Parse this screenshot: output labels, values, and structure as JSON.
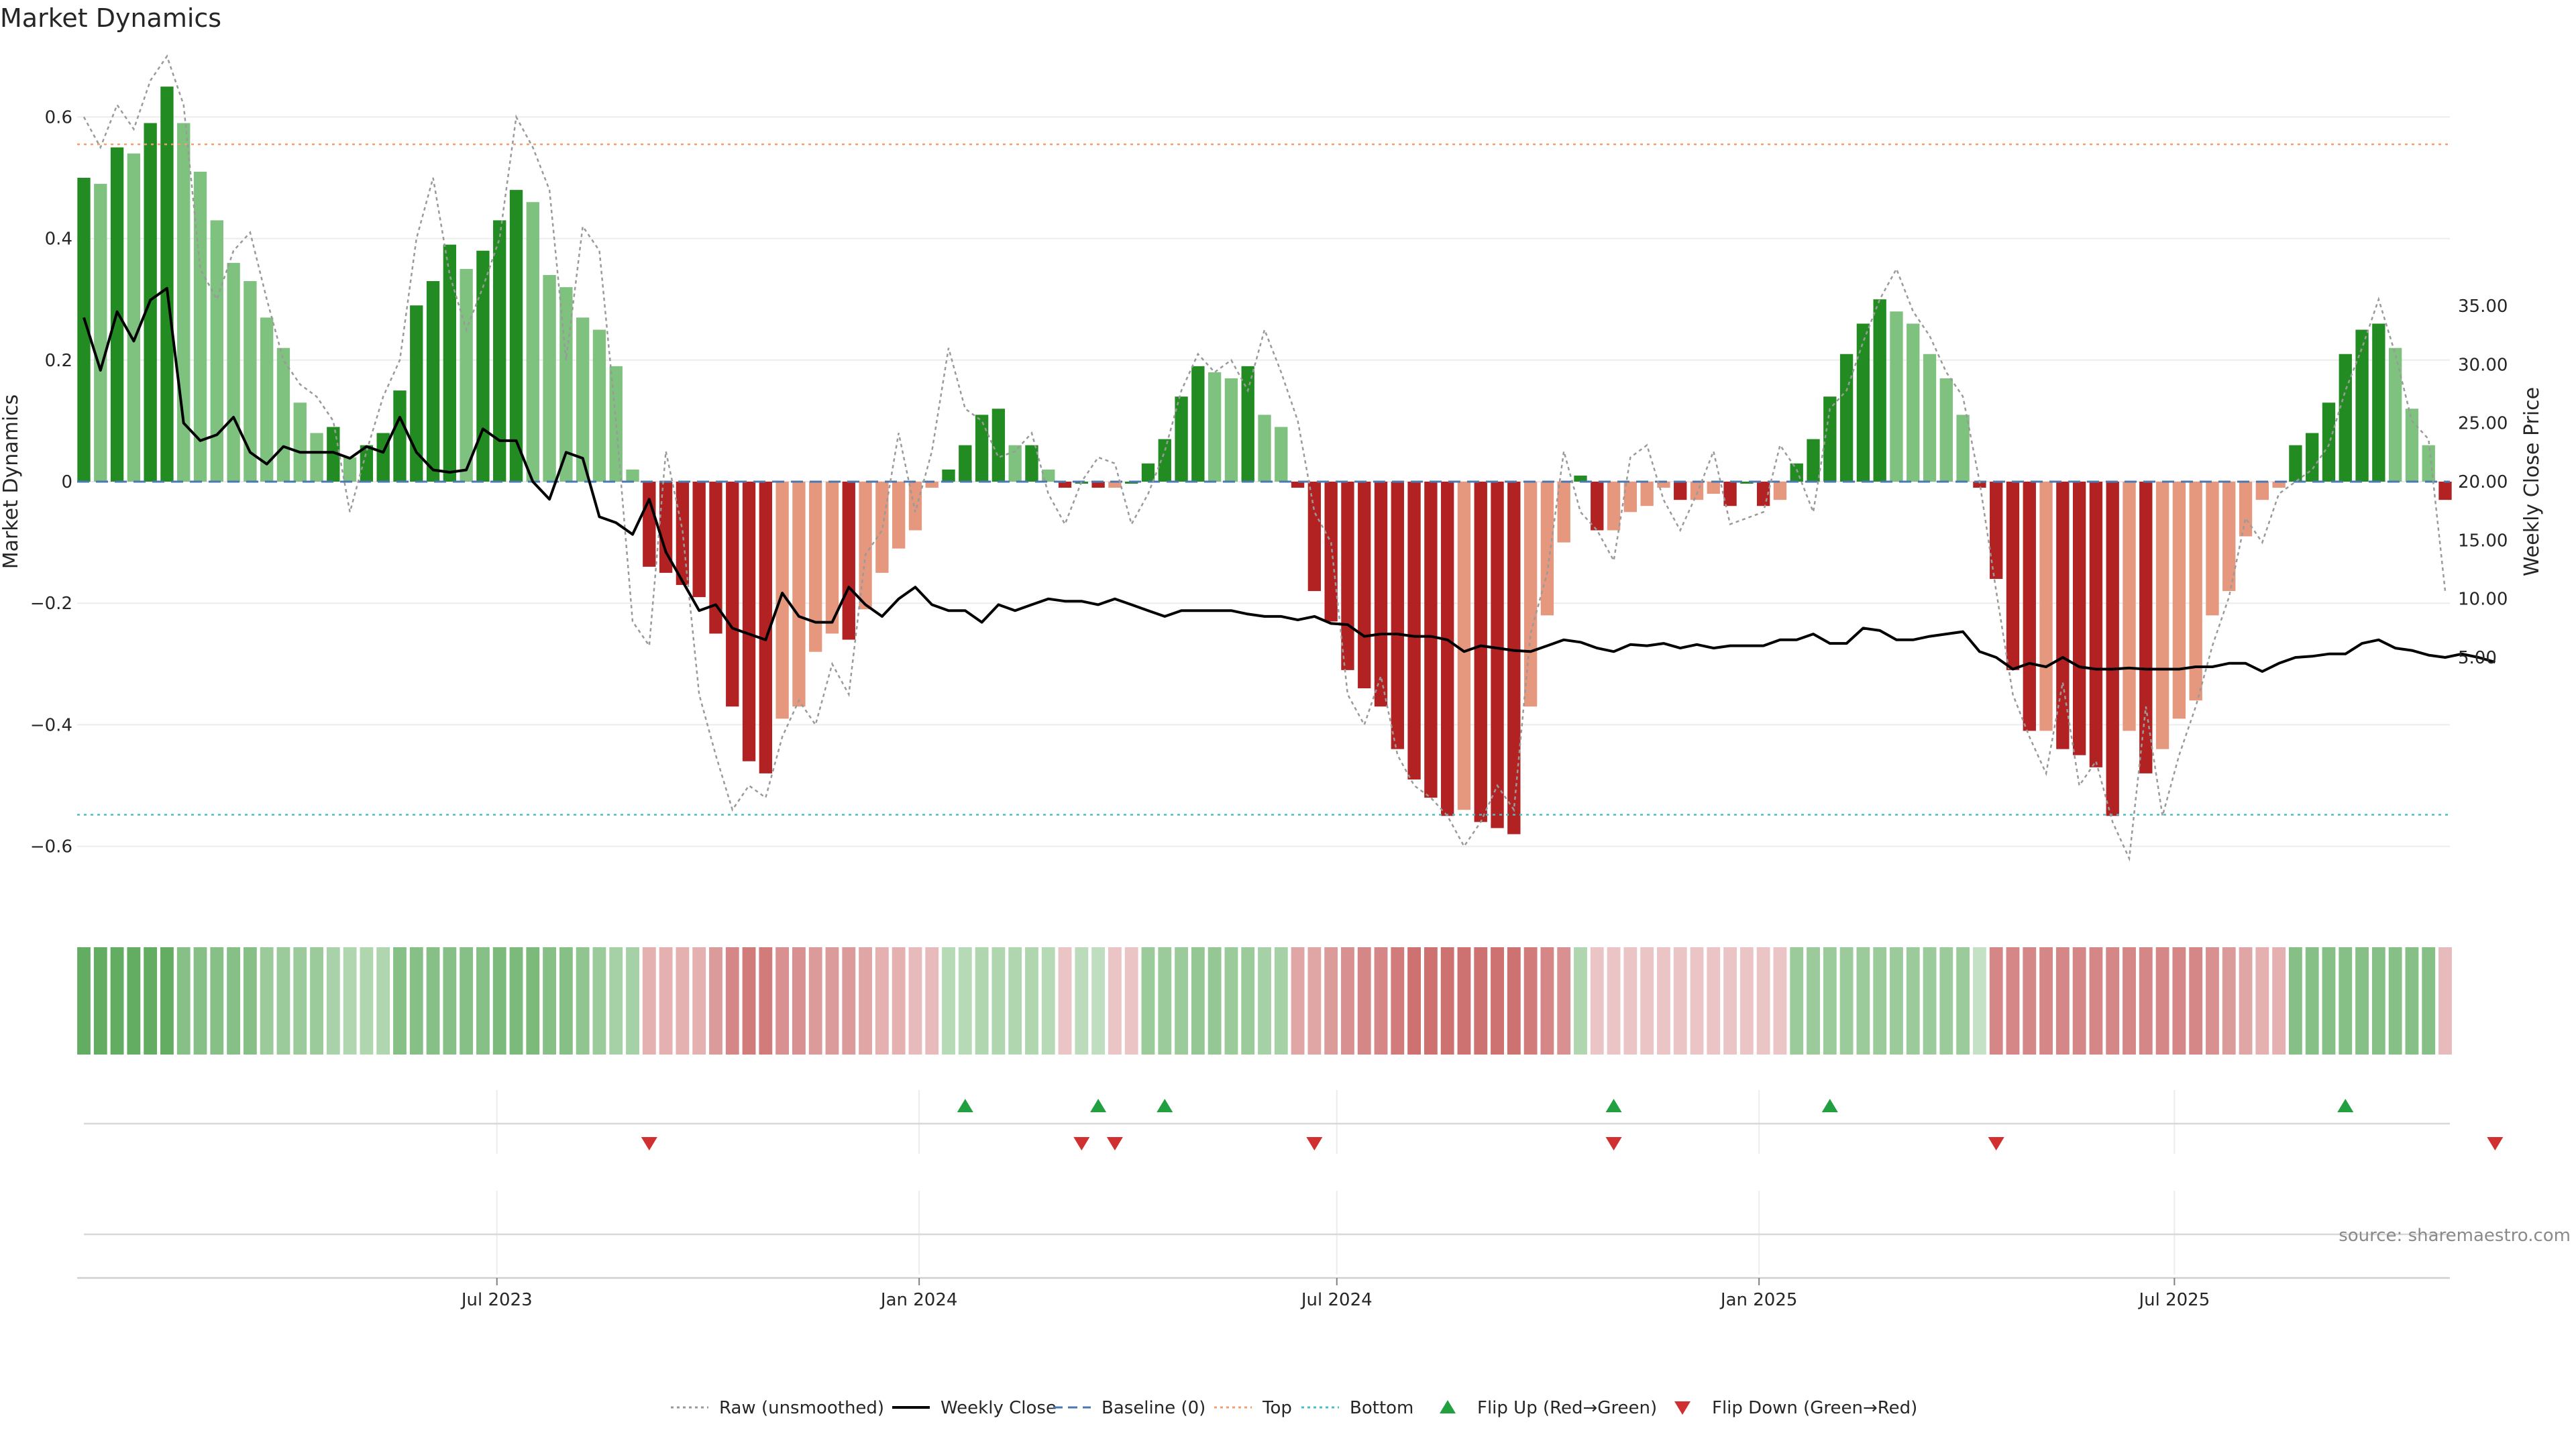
{
  "title": "Market Dynamics",
  "source_note": "source: sharemaestro.com",
  "chart_data": {
    "type": "bar",
    "title": "Market Dynamics",
    "ylabel_left": "Market Dynamics",
    "ylabel_right": "Weekly Close Price",
    "ylim_left": [
      -0.7,
      0.7
    ],
    "ylim_right": [
      2.5,
      38.5
    ],
    "yticks_left": [
      0.6,
      0.4,
      0.2,
      0,
      -0.2,
      -0.4,
      -0.6
    ],
    "yticks_left_labels": [
      "0.6",
      "0.4",
      "0.2",
      "0",
      "−0.2",
      "−0.4",
      "−0.6"
    ],
    "yticks_right": [
      35,
      30,
      25,
      20,
      15,
      10,
      5
    ],
    "yticks_right_labels": [
      "35.00",
      "30.00",
      "25.00",
      "20.00",
      "15.00",
      "10.00",
      "5.00"
    ],
    "x_start": "2023-01-02",
    "x_end": "2025-10-27",
    "xticks": [
      {
        "date": "2023-07-01",
        "label": "Jul 2023"
      },
      {
        "date": "2024-01-01",
        "label": "Jan 2024"
      },
      {
        "date": "2024-07-01",
        "label": "Jul 2024"
      },
      {
        "date": "2025-01-01",
        "label": "Jan 2025"
      },
      {
        "date": "2025-07-01",
        "label": "Jul 2025"
      }
    ],
    "top_threshold": 0.555,
    "bottom_threshold": -0.548,
    "grid": true,
    "legend_position": "bottom-center",
    "colors": {
      "strong_up": "#228b22",
      "weak_up": "#7fc17f",
      "strong_down": "#b22222",
      "weak_down": "#e5987e",
      "weekly_close": "#000000",
      "raw": "#9a9a9a",
      "baseline": "#4a78b0",
      "top": "#f0a070",
      "bottom": "#48c0c0",
      "flip_up": "#22a040",
      "flip_down": "#d03030"
    },
    "market_dynamics": [
      0.5,
      0.49,
      0.55,
      0.54,
      0.59,
      0.65,
      0.59,
      0.51,
      0.43,
      0.36,
      0.33,
      0.27,
      0.22,
      0.13,
      0.08,
      0.09,
      0.04,
      0.06,
      0.08,
      0.15,
      0.29,
      0.33,
      0.39,
      0.35,
      0.38,
      0.43,
      0.48,
      0.46,
      0.34,
      0.32,
      0.27,
      0.25,
      0.19,
      0.02,
      -0.14,
      -0.15,
      -0.17,
      -0.19,
      -0.25,
      -0.37,
      -0.46,
      -0.48,
      -0.39,
      -0.37,
      -0.28,
      -0.25,
      -0.26,
      -0.21,
      -0.15,
      -0.11,
      -0.08,
      -0.01,
      0.02,
      0.06,
      0.11,
      0.12,
      0.06,
      0.06,
      0.02,
      -0.01,
      0.0,
      -0.01,
      -0.01,
      0.0,
      0.03,
      0.07,
      0.14,
      0.19,
      0.18,
      0.17,
      0.19,
      0.11,
      0.09,
      -0.01,
      -0.18,
      -0.23,
      -0.31,
      -0.34,
      -0.37,
      -0.44,
      -0.49,
      -0.52,
      -0.55,
      -0.54,
      -0.56,
      -0.57,
      -0.58,
      -0.37,
      -0.22,
      -0.1,
      0.01,
      -0.08,
      -0.08,
      -0.05,
      -0.04,
      -0.01,
      -0.03,
      -0.03,
      -0.02,
      -0.04,
      0.0,
      -0.04,
      -0.03,
      0.03,
      0.07,
      0.14,
      0.21,
      0.26,
      0.3,
      0.28,
      0.26,
      0.21,
      0.17,
      0.11,
      -0.01,
      -0.16,
      -0.31,
      -0.41,
      -0.41,
      -0.44,
      -0.45,
      -0.47,
      -0.55,
      -0.41,
      -0.48,
      -0.44,
      -0.39,
      -0.36,
      -0.22,
      -0.18,
      -0.09,
      -0.03,
      -0.01,
      0.06,
      0.08,
      0.13,
      0.21,
      0.25,
      0.26,
      0.22,
      0.12,
      0.06,
      -0.03
    ],
    "raw_unsmoothed": [
      0.6,
      0.55,
      0.62,
      0.58,
      0.66,
      0.7,
      0.62,
      0.35,
      0.3,
      0.38,
      0.41,
      0.3,
      0.2,
      0.16,
      0.14,
      0.1,
      -0.05,
      0.05,
      0.14,
      0.2,
      0.4,
      0.5,
      0.34,
      0.25,
      0.32,
      0.4,
      0.6,
      0.55,
      0.48,
      0.2,
      0.42,
      0.38,
      0.1,
      -0.23,
      -0.27,
      0.05,
      -0.08,
      -0.35,
      -0.45,
      -0.54,
      -0.5,
      -0.52,
      -0.42,
      -0.36,
      -0.4,
      -0.3,
      -0.35,
      -0.12,
      -0.08,
      0.08,
      -0.05,
      0.05,
      0.22,
      0.12,
      0.1,
      0.04,
      0.05,
      0.08,
      -0.02,
      -0.07,
      0.0,
      0.04,
      0.03,
      -0.07,
      -0.02,
      0.05,
      0.15,
      0.21,
      0.18,
      0.2,
      0.15,
      0.25,
      0.18,
      0.1,
      -0.05,
      -0.1,
      -0.35,
      -0.4,
      -0.32,
      -0.45,
      -0.5,
      -0.52,
      -0.55,
      -0.6,
      -0.56,
      -0.5,
      -0.54,
      -0.25,
      -0.15,
      0.05,
      -0.05,
      -0.08,
      -0.13,
      0.04,
      0.06,
      -0.03,
      -0.08,
      -0.02,
      0.05,
      -0.07,
      -0.06,
      -0.05,
      0.06,
      0.02,
      -0.05,
      0.12,
      0.15,
      0.23,
      0.3,
      0.35,
      0.28,
      0.24,
      0.18,
      0.14,
      0.0,
      -0.18,
      -0.35,
      -0.42,
      -0.48,
      -0.33,
      -0.5,
      -0.46,
      -0.56,
      -0.62,
      -0.37,
      -0.55,
      -0.45,
      -0.37,
      -0.27,
      -0.19,
      -0.06,
      -0.1,
      -0.02,
      0.0,
      0.02,
      0.06,
      0.15,
      0.22,
      0.3,
      0.21,
      0.1,
      0.07,
      -0.18
    ],
    "weekly_close": [
      34.0,
      29.5,
      34.5,
      32.0,
      35.5,
      36.5,
      25.0,
      23.5,
      24.0,
      25.5,
      22.5,
      21.5,
      23.0,
      22.5,
      22.5,
      22.5,
      22.0,
      23.0,
      22.5,
      25.5,
      22.5,
      21.0,
      20.8,
      21.0,
      24.5,
      23.5,
      23.5,
      20.0,
      18.5,
      22.5,
      22.0,
      17.0,
      16.5,
      15.5,
      18.5,
      14.0,
      11.5,
      9.0,
      9.5,
      7.5,
      7.0,
      6.5,
      10.5,
      8.5,
      8.0,
      8.0,
      11.0,
      9.5,
      8.5,
      10.0,
      11.0,
      9.5,
      9.0,
      9.0,
      8.0,
      9.5,
      9.0,
      9.5,
      10.0,
      9.8,
      9.8,
      9.5,
      10.0,
      9.5,
      9.0,
      8.5,
      9.0,
      9.0,
      9.0,
      9.0,
      8.7,
      8.5,
      8.5,
      8.2,
      8.5,
      7.9,
      7.8,
      6.8,
      7.0,
      7.0,
      6.8,
      6.8,
      6.5,
      5.5,
      6.0,
      5.8,
      5.6,
      5.5,
      6.0,
      6.5,
      6.3,
      5.8,
      5.5,
      6.1,
      6.0,
      6.2,
      5.8,
      6.1,
      5.8,
      6.0,
      6.0,
      6.0,
      6.5,
      6.5,
      7.0,
      6.2,
      6.2,
      7.5,
      7.3,
      6.5,
      6.5,
      6.8,
      7.0,
      7.2,
      5.5,
      5.0,
      4.0,
      4.5,
      4.2,
      5.0,
      4.2,
      4.0,
      4.0,
      4.1,
      4.0,
      4.0,
      4.0,
      4.2,
      4.2,
      4.5,
      4.5,
      3.8,
      4.5,
      5.0,
      5.1,
      5.3,
      5.3,
      6.2,
      6.5,
      5.8,
      5.6,
      5.2,
      5.0,
      5.3,
      5.0,
      4.6
    ],
    "regime_strength": [
      0.62,
      0.62,
      0.62,
      0.62,
      0.62,
      0.62,
      0.45,
      0.45,
      0.45,
      0.45,
      0.45,
      0.35,
      0.35,
      0.35,
      0.35,
      0.28,
      0.25,
      0.25,
      0.25,
      0.45,
      0.45,
      0.45,
      0.45,
      0.45,
      0.45,
      0.5,
      0.5,
      0.5,
      0.45,
      0.45,
      0.4,
      0.35,
      0.3,
      0.3,
      -0.25,
      -0.25,
      -0.25,
      -0.25,
      -0.35,
      -0.45,
      -0.5,
      -0.5,
      -0.4,
      -0.4,
      -0.35,
      -0.35,
      -0.35,
      -0.3,
      -0.25,
      -0.25,
      -0.2,
      -0.2,
      0.22,
      0.22,
      0.25,
      0.25,
      0.25,
      0.25,
      0.22,
      -0.15,
      0.2,
      0.18,
      -0.15,
      -0.15,
      0.35,
      0.35,
      0.35,
      0.38,
      0.38,
      0.35,
      0.35,
      0.3,
      0.3,
      -0.3,
      -0.3,
      -0.35,
      -0.4,
      -0.45,
      -0.45,
      -0.5,
      -0.55,
      -0.55,
      -0.55,
      -0.55,
      -0.55,
      -0.55,
      -0.55,
      -0.5,
      -0.45,
      -0.4,
      0.25,
      -0.15,
      -0.15,
      -0.15,
      -0.15,
      -0.15,
      -0.15,
      -0.15,
      -0.15,
      -0.15,
      -0.15,
      -0.15,
      -0.15,
      0.35,
      0.35,
      0.35,
      0.35,
      0.35,
      0.35,
      0.35,
      0.35,
      0.35,
      0.35,
      0.35,
      0.15,
      -0.45,
      -0.45,
      -0.45,
      -0.45,
      -0.45,
      -0.45,
      -0.45,
      -0.45,
      -0.45,
      -0.45,
      -0.45,
      -0.45,
      -0.45,
      -0.4,
      -0.35,
      -0.3,
      -0.25,
      -0.25,
      0.45,
      0.45,
      0.45,
      0.45,
      0.45,
      0.45,
      0.45,
      0.45,
      0.45,
      -0.2
    ],
    "flips_up": [
      53,
      61,
      65,
      92,
      105,
      136
    ],
    "flips_down": [
      34,
      60,
      62,
      74,
      92,
      115,
      145
    ],
    "legend": [
      {
        "label": "Raw (unsmoothed)",
        "kind": "dotted-line",
        "color": "#9a9a9a"
      },
      {
        "label": "Weekly Close",
        "kind": "solid-line",
        "color": "#000000"
      },
      {
        "label": "Baseline (0)",
        "kind": "dashed-line",
        "color": "#4a78b0"
      },
      {
        "label": "Top",
        "kind": "dotted-line",
        "color": "#f0a070"
      },
      {
        "label": "Bottom",
        "kind": "dotted-line",
        "color": "#48c0c0"
      },
      {
        "label": "Flip Up (Red→Green)",
        "kind": "triangle-up",
        "color": "#22a040"
      },
      {
        "label": "Flip Down (Green→Red)",
        "kind": "triangle-down",
        "color": "#d03030"
      }
    ]
  }
}
